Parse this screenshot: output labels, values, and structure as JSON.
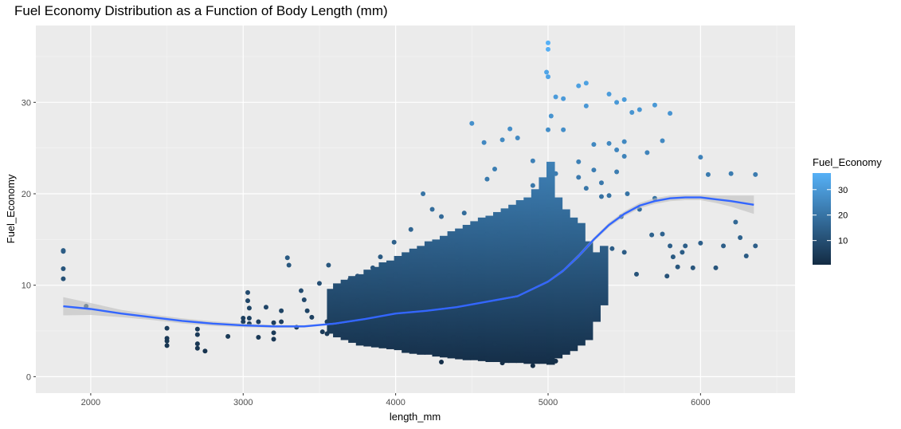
{
  "chart_data": {
    "type": "scatter",
    "title": "Fuel Economy Distribution as a Function of Body Length (mm)",
    "xlabel": "length_mm",
    "ylabel": "Fuel_Economy",
    "xlim": [
      1640,
      6620
    ],
    "ylim": [
      -1.8,
      38.4
    ],
    "x_ticks": [
      2000,
      3000,
      4000,
      5000,
      6000
    ],
    "y_ticks": [
      0,
      10,
      20,
      30
    ],
    "grid": true,
    "legend": {
      "title": "Fuel_Economy",
      "placement": "right",
      "ticks": [
        10,
        20,
        30
      ],
      "range": [
        0.5,
        36.5
      ],
      "color_low": "#132B43",
      "color_high": "#56B1F7"
    },
    "smooth": {
      "color": "#3366FF",
      "ribbon_color": "#BEBEBE",
      "x": [
        1820,
        2000,
        2200,
        2400,
        2600,
        2800,
        3000,
        3200,
        3400,
        3600,
        3800,
        4000,
        4200,
        4400,
        4600,
        4800,
        5000,
        5100,
        5200,
        5300,
        5400,
        5500,
        5600,
        5700,
        5800,
        5900,
        6000,
        6100,
        6200,
        6350
      ],
      "y": [
        7.7,
        7.4,
        6.9,
        6.5,
        6.1,
        5.8,
        5.6,
        5.5,
        5.5,
        5.8,
        6.3,
        6.9,
        7.2,
        7.6,
        8.2,
        8.8,
        10.4,
        11.6,
        13.2,
        15.0,
        16.6,
        17.8,
        18.7,
        19.2,
        19.5,
        19.6,
        19.6,
        19.4,
        19.2,
        18.8
      ],
      "ci": [
        1.0,
        0.65,
        0.4,
        0.3,
        0.28,
        0.25,
        0.2,
        0.15,
        0.12,
        0.1,
        0.08,
        0.08,
        0.08,
        0.08,
        0.08,
        0.1,
        0.12,
        0.15,
        0.2,
        0.22,
        0.25,
        0.28,
        0.3,
        0.32,
        0.3,
        0.3,
        0.3,
        0.4,
        0.6,
        1.0
      ]
    },
    "points": {
      "color_by": "y",
      "x": [
        1820,
        1820,
        1820,
        1820,
        1970,
        2500,
        2500,
        2500,
        2500,
        2700,
        2700,
        2700,
        2700,
        2750,
        2900,
        3000,
        3000,
        3030,
        3030,
        3040,
        3040,
        3040,
        3100,
        3100,
        3150,
        3200,
        3200,
        3200,
        3250,
        3250,
        3290,
        3300,
        3350,
        3380,
        3400,
        3420,
        3450,
        3500,
        3520,
        3550,
        3560,
        3600,
        3610,
        3640,
        3650,
        3700,
        3720,
        3740,
        3750,
        3800,
        3810,
        3830,
        3850,
        3870,
        3900,
        3910,
        3930,
        3950,
        3980,
        3990,
        4000,
        4020,
        4050,
        4080,
        4100,
        4130,
        4150,
        4160,
        4180,
        4200,
        4220,
        4240,
        4260,
        4280,
        4300,
        4320,
        4350,
        4380,
        4400,
        4420,
        4450,
        4470,
        4490,
        4500,
        4520,
        4550,
        4580,
        4600,
        4620,
        4650,
        4680,
        4700,
        4720,
        4750,
        4770,
        4800,
        4830,
        4850,
        4880,
        4900,
        4920,
        4950,
        4970,
        4990,
        5000,
        5000,
        5000,
        5000,
        5000,
        5020,
        5050,
        5050,
        5080,
        5100,
        5100,
        5150,
        5200,
        5200,
        5250,
        5250,
        5300,
        5300,
        5350,
        5400,
        5400,
        5420,
        5450,
        5450,
        5480,
        5500,
        5500,
        5500,
        5520,
        5550,
        5580,
        5600,
        5600,
        5650,
        5680,
        5700,
        5700,
        5750,
        5750,
        5780,
        5800,
        5800,
        5820,
        5850,
        5880,
        5900,
        5950,
        6000,
        6000,
        6050,
        6100,
        6150,
        6200,
        6230,
        6260,
        6300,
        6360,
        6360,
        5100,
        4500,
        4300,
        4600,
        4700,
        4800,
        4900,
        5000,
        5050,
        4850,
        4750,
        4650,
        4550,
        4450,
        4350,
        4250,
        4150,
        4050,
        3950,
        3850,
        3750,
        3650,
        3550,
        4950,
        4900,
        4800,
        4700,
        4600,
        4400,
        4300,
        4200,
        4100,
        4000,
        3900,
        3800,
        3700,
        5000,
        4950,
        4850,
        4750,
        4650,
        4550,
        4450,
        4350,
        4250,
        4150,
        4050,
        3950,
        3850,
        3750,
        3650,
        5200,
        5250,
        5300,
        5350,
        5400,
        5450,
        5500,
        5150,
        5100,
        5050
      ],
      "y": [
        13.8,
        13.7,
        11.8,
        10.7,
        7.7,
        5.3,
        4.2,
        3.9,
        3.4,
        5.2,
        4.6,
        3.6,
        3.1,
        2.8,
        4.4,
        6.4,
        6.0,
        9.2,
        8.3,
        7.5,
        6.4,
        5.8,
        6.0,
        4.3,
        7.6,
        5.9,
        4.8,
        4.1,
        7.2,
        6.0,
        13.0,
        12.2,
        5.4,
        9.4,
        8.4,
        7.2,
        6.5,
        10.2,
        4.9,
        6.0,
        12.2,
        8.7,
        4.8,
        5.6,
        9.6,
        10.6,
        5.3,
        4.5,
        11.0,
        7.8,
        6.2,
        4.6,
        11.9,
        5.5,
        13.1,
        6.8,
        4.2,
        9.5,
        6.0,
        14.7,
        11.2,
        4.7,
        12.6,
        5.2,
        16.1,
        10.0,
        6.2,
        3.7,
        20.0,
        8.8,
        4.8,
        18.3,
        12.2,
        5.7,
        17.5,
        7.5,
        14.8,
        4.3,
        13.0,
        6.9,
        17.9,
        11.5,
        5.3,
        27.7,
        9.0,
        4.1,
        25.6,
        21.6,
        7.2,
        22.7,
        15.6,
        25.9,
        9.3,
        27.1,
        6.0,
        26.1,
        12.1,
        16.3,
        8.3,
        23.6,
        4.9,
        17.9,
        10.6,
        33.3,
        36.5,
        35.8,
        32.8,
        27.0,
        19.6,
        28.5,
        30.6,
        22.2,
        14.1,
        27.0,
        30.4,
        16.5,
        31.8,
        23.5,
        29.6,
        32.1,
        25.4,
        10.2,
        21.2,
        30.9,
        19.8,
        14.0,
        30.0,
        24.8,
        17.5,
        30.3,
        25.7,
        13.6,
        20.0,
        28.9,
        11.2,
        29.2,
        18.3,
        24.5,
        15.5,
        29.7,
        19.5,
        25.8,
        15.6,
        11.0,
        28.8,
        14.3,
        13.1,
        12.0,
        13.6,
        14.3,
        11.9,
        24.0,
        14.6,
        22.1,
        11.9,
        14.3,
        22.2,
        16.9,
        15.2,
        13.2,
        22.1,
        14.3,
        4.0,
        2.1,
        1.6,
        2.0,
        1.5,
        2.5,
        1.2,
        2.2,
        1.7,
        3.0,
        3.2,
        3.6,
        3.4,
        3.8,
        3.3,
        3.9,
        4.0,
        3.5,
        4.1,
        4.3,
        4.5,
        4.6,
        4.7,
        16.8,
        20.9,
        18.4,
        16.9,
        15.6,
        14.3,
        13.7,
        13.6,
        12.1,
        11.0,
        10.4,
        10.0,
        9.5,
        18.3,
        15.4,
        14.0,
        13.0,
        12.6,
        12.0,
        11.8,
        11.0,
        10.6,
        10.0,
        9.6,
        9.1,
        8.7,
        8.3,
        7.9,
        21.8,
        20.6,
        22.6,
        19.7,
        25.5,
        22.4,
        24.1,
        16.2,
        15.0,
        13.5
      ],
      "columns": [
        [
          3560,
          4.7,
          9.6
        ],
        [
          3600,
          4.3,
          10.2
        ],
        [
          3650,
          4.0,
          10.6
        ],
        [
          3700,
          3.7,
          11.0
        ],
        [
          3750,
          3.4,
          11.2
        ],
        [
          3800,
          3.3,
          11.7
        ],
        [
          3850,
          3.2,
          12.0
        ],
        [
          3900,
          3.1,
          12.5
        ],
        [
          3950,
          3.0,
          12.7
        ],
        [
          4000,
          2.9,
          13.2
        ],
        [
          4050,
          2.6,
          13.6
        ],
        [
          4100,
          2.5,
          14.0
        ],
        [
          4150,
          2.4,
          14.3
        ],
        [
          4200,
          2.4,
          14.8
        ],
        [
          4250,
          2.2,
          15.0
        ],
        [
          4300,
          2.1,
          15.4
        ],
        [
          4350,
          2.0,
          15.9
        ],
        [
          4400,
          1.9,
          16.2
        ],
        [
          4450,
          1.8,
          16.6
        ],
        [
          4500,
          1.8,
          17.0
        ],
        [
          4550,
          1.7,
          17.4
        ],
        [
          4600,
          1.6,
          17.6
        ],
        [
          4650,
          1.6,
          18.0
        ],
        [
          4700,
          1.5,
          18.4
        ],
        [
          4750,
          1.5,
          18.8
        ],
        [
          4800,
          1.5,
          19.3
        ],
        [
          4850,
          1.4,
          19.6
        ],
        [
          4900,
          1.4,
          20.5
        ],
        [
          4950,
          1.4,
          21.8
        ],
        [
          5000,
          1.3,
          23.5
        ],
        [
          5050,
          2.0,
          19.6
        ],
        [
          5100,
          2.4,
          18.3
        ],
        [
          5150,
          2.8,
          17.4
        ],
        [
          5200,
          3.4,
          16.8
        ],
        [
          5250,
          4.0,
          14.8
        ],
        [
          5300,
          6.0,
          13.6
        ],
        [
          5350,
          7.8,
          14.3
        ]
      ]
    }
  }
}
